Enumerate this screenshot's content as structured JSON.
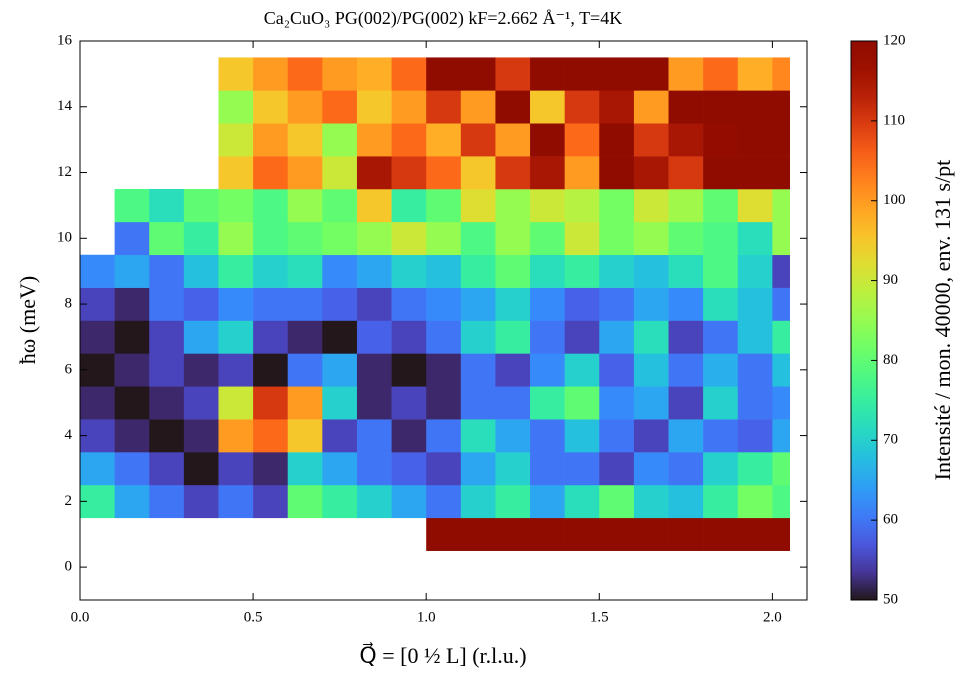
{
  "chart_data": {
    "type": "heatmap",
    "title": "Ca₂CuO₃ PG(002)/PG(002) kF=2.662 Å⁻¹, T=4K",
    "xlabel": "Q⃗ = [0 ½ L] (r.l.u.)",
    "ylabel": "ħω (meV)",
    "colorbar_label": "Intensité / mon. 40000, env. 131 s/pt",
    "colormap": "turbo",
    "xbins": [
      0,
      0.1,
      0.2,
      0.3,
      0.4,
      0.5,
      0.6,
      0.7,
      0.8,
      0.9,
      1.0,
      1.1,
      1.2,
      1.3,
      1.4,
      1.5,
      1.6,
      1.7,
      1.8,
      1.9,
      2.0,
      2.05
    ],
    "ybins": [
      0.5,
      1.5,
      2.5,
      3.5,
      4.5,
      5.5,
      6.5,
      7.5,
      8.5,
      9.5,
      10.5,
      11.5,
      12.5,
      13.5,
      14.5,
      15.5
    ],
    "z": [
      [
        null,
        null,
        null,
        null,
        null,
        null,
        null,
        null,
        null,
        null,
        120,
        120,
        120,
        120,
        120,
        120,
        120,
        120,
        120,
        120,
        120
      ],
      [
        75,
        65,
        60,
        55,
        60,
        55,
        80,
        75,
        70,
        65,
        60,
        70,
        75,
        65,
        72,
        80,
        70,
        68,
        75,
        82,
        78
      ],
      [
        65,
        60,
        55,
        50,
        55,
        52,
        70,
        65,
        60,
        58,
        55,
        65,
        70,
        60,
        60,
        55,
        62,
        60,
        70,
        75,
        80
      ],
      [
        55,
        52,
        50,
        52,
        100,
        105,
        95,
        55,
        60,
        52,
        60,
        72,
        65,
        60,
        68,
        60,
        55,
        65,
        60,
        58,
        65
      ],
      [
        52,
        50,
        52,
        55,
        90,
        110,
        100,
        70,
        52,
        55,
        52,
        60,
        60,
        75,
        80,
        62,
        65,
        55,
        70,
        60,
        62
      ],
      [
        50,
        52,
        55,
        52,
        55,
        50,
        60,
        65,
        52,
        50,
        52,
        60,
        55,
        62,
        70,
        58,
        68,
        60,
        66,
        60,
        68
      ],
      [
        52,
        50,
        55,
        65,
        70,
        55,
        52,
        50,
        58,
        55,
        60,
        70,
        75,
        60,
        55,
        65,
        72,
        55,
        60,
        68,
        75
      ],
      [
        55,
        52,
        60,
        58,
        62,
        60,
        60,
        58,
        55,
        60,
        62,
        65,
        70,
        62,
        58,
        60,
        65,
        62,
        72,
        68,
        60
      ],
      [
        62,
        65,
        60,
        68,
        75,
        70,
        72,
        62,
        65,
        70,
        68,
        75,
        80,
        72,
        75,
        70,
        68,
        72,
        78,
        70,
        55
      ],
      [
        null,
        60,
        80,
        75,
        85,
        78,
        80,
        82,
        85,
        90,
        85,
        78,
        85,
        80,
        90,
        82,
        85,
        80,
        78,
        72,
        85
      ],
      [
        null,
        78,
        72,
        80,
        82,
        78,
        85,
        80,
        95,
        75,
        80,
        92,
        85,
        90,
        88,
        82,
        90,
        86,
        80,
        92,
        85
      ],
      [
        null,
        null,
        null,
        null,
        95,
        105,
        100,
        90,
        115,
        110,
        105,
        95,
        110,
        115,
        100,
        120,
        115,
        110,
        120,
        120,
        120
      ],
      [
        null,
        null,
        null,
        null,
        90,
        100,
        95,
        85,
        100,
        105,
        98,
        110,
        100,
        120,
        105,
        120,
        110,
        115,
        118,
        120,
        120
      ],
      [
        null,
        null,
        null,
        null,
        85,
        95,
        100,
        105,
        95,
        100,
        110,
        100,
        120,
        95,
        110,
        115,
        100,
        120,
        120,
        120,
        120
      ],
      [
        null,
        null,
        null,
        null,
        95,
        100,
        105,
        100,
        98,
        105,
        120,
        120,
        110,
        120,
        120,
        120,
        120,
        100,
        105,
        98,
        102
      ]
    ],
    "xlim": [
      0,
      2.1
    ],
    "ylim": [
      -1,
      16
    ],
    "xticks": [
      {
        "value": 0,
        "label": "0.0"
      },
      0.5,
      {
        "value": 1,
        "label": "1.0"
      },
      1.5,
      {
        "value": 2,
        "label": "2.0"
      }
    ],
    "yticks": [
      0,
      2,
      4,
      6,
      8,
      10,
      12,
      14,
      16
    ],
    "zlim": [
      50,
      120
    ],
    "zticks": [
      50,
      60,
      70,
      80,
      90,
      100,
      110,
      120
    ]
  }
}
